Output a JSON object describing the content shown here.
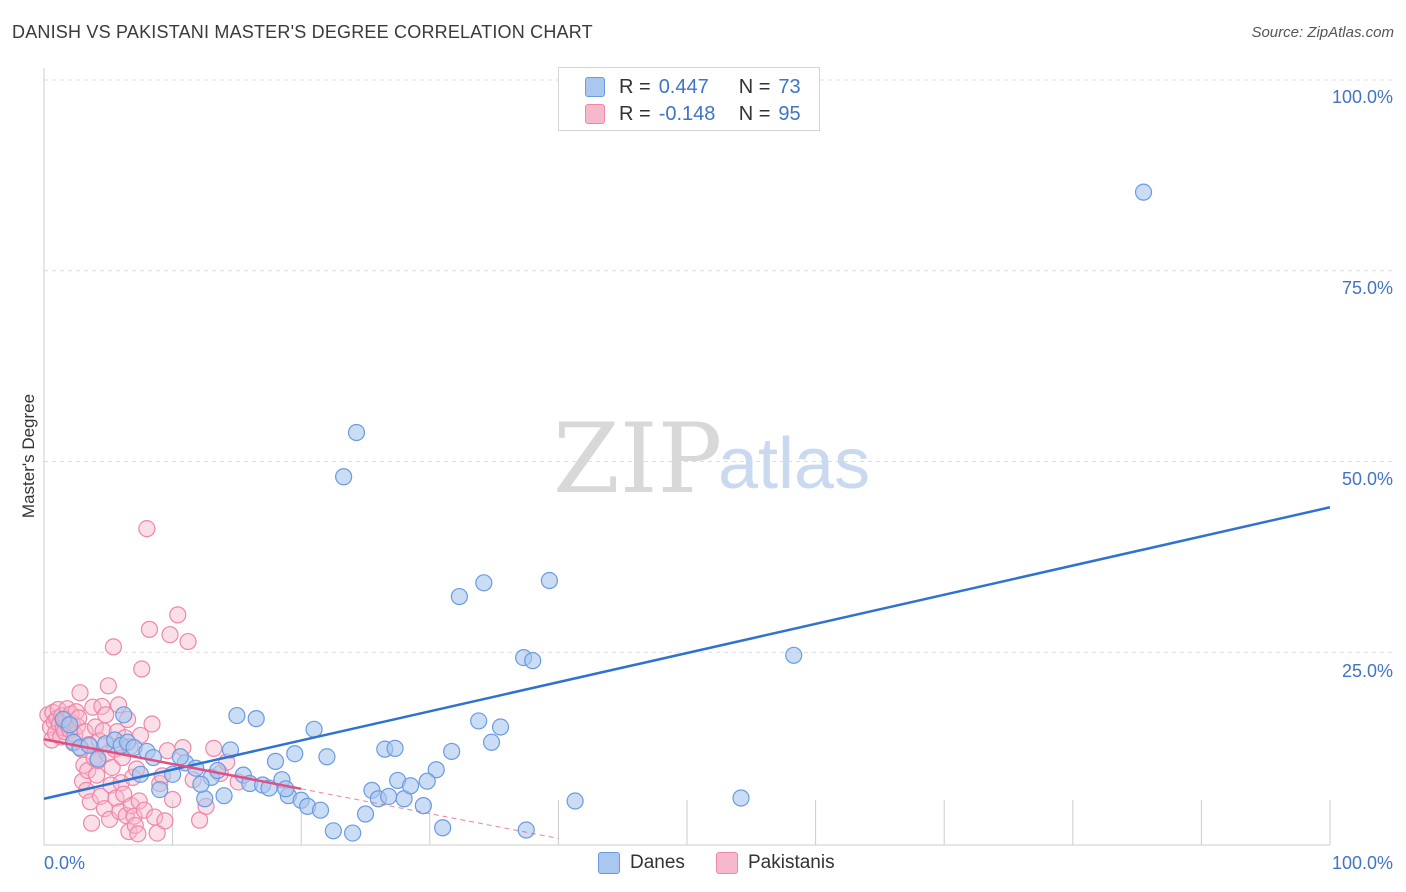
{
  "title": "DANISH VS PAKISTANI MASTER'S DEGREE CORRELATION CHART",
  "source": "Source: ZipAtlas.com",
  "watermark": {
    "zip": "ZIP",
    "atlas": "atlas"
  },
  "legend": {
    "rows": [
      {
        "r_label": "R =",
        "r_value": "0.447",
        "n_label": "N =",
        "n_value": "73"
      },
      {
        "r_label": "R =",
        "r_value": "-0.148",
        "n_label": "N =",
        "n_value": "95"
      }
    ]
  },
  "bottom_legend": {
    "danes": "Danes",
    "pakistanis": "Pakistanis"
  },
  "colors": {
    "danes_fill": "#a9c7ef",
    "danes_stroke": "#6a9be0",
    "danes_line": "#2f72d0",
    "pak_fill": "#f6b9cc",
    "pak_stroke": "#ee87a8",
    "pak_line": "#e24f82",
    "tick": "#3f74c6",
    "grid": "#dddddd"
  },
  "chart_data": {
    "type": "scatter",
    "title": "DANISH VS PAKISTANI MASTER'S DEGREE CORRELATION CHART",
    "xlabel": "",
    "ylabel": "Master's Degree",
    "xlim": [
      0,
      100
    ],
    "ylim": [
      0,
      100
    ],
    "x_tick_labels": [
      "0.0%",
      "100.0%"
    ],
    "y_tick_labels": [
      "25.0%",
      "50.0%",
      "75.0%",
      "100.0%"
    ],
    "y_tick_values": [
      25,
      50,
      75,
      100
    ],
    "grid": true,
    "series": [
      {
        "name": "Danes",
        "R": 0.447,
        "N": 73,
        "trend": {
          "x": [
            0,
            100
          ],
          "y": [
            5.8,
            44.0
          ]
        },
        "points": [
          [
            1.5,
            16.2
          ],
          [
            2,
            15.5
          ],
          [
            2.3,
            13.2
          ],
          [
            2.8,
            12.5
          ],
          [
            3.5,
            12.8
          ],
          [
            4.2,
            11
          ],
          [
            4.8,
            13
          ],
          [
            5.5,
            13.5
          ],
          [
            6,
            12.8
          ],
          [
            6.5,
            13.2
          ],
          [
            7,
            12.5
          ],
          [
            7.5,
            9
          ],
          [
            8,
            12
          ],
          [
            8.5,
            11.2
          ],
          [
            9,
            7
          ],
          [
            10,
            9
          ],
          [
            11,
            10.5
          ],
          [
            11.8,
            9.8
          ],
          [
            12.5,
            5.8
          ],
          [
            13,
            8.6
          ],
          [
            13.5,
            9.5
          ],
          [
            14,
            6.2
          ],
          [
            14.5,
            12.2
          ],
          [
            15,
            16.7
          ],
          [
            15.5,
            8.9
          ],
          [
            16,
            7.8
          ],
          [
            16.5,
            16.3
          ],
          [
            17,
            7.6
          ],
          [
            17.5,
            7.2
          ],
          [
            18,
            10.7
          ],
          [
            18.5,
            8.3
          ],
          [
            19,
            6.2
          ],
          [
            19.5,
            11.7
          ],
          [
            20,
            5.6
          ],
          [
            20.5,
            4.8
          ],
          [
            21,
            14.9
          ],
          [
            21.5,
            4.3
          ],
          [
            22,
            11.3
          ],
          [
            22.5,
            1.6
          ],
          [
            24,
            1.3
          ],
          [
            23.3,
            48
          ],
          [
            24.3,
            53.8
          ],
          [
            25,
            3.8
          ],
          [
            25.5,
            6.9
          ],
          [
            26,
            5.8
          ],
          [
            26.5,
            12.3
          ],
          [
            27.3,
            12.4
          ],
          [
            27.5,
            8.2
          ],
          [
            28,
            5.8
          ],
          [
            28.5,
            7.5
          ],
          [
            29.5,
            4.9
          ],
          [
            30.5,
            9.6
          ],
          [
            31,
            2
          ],
          [
            31.7,
            12
          ],
          [
            32.3,
            32.3
          ],
          [
            33.8,
            16
          ],
          [
            34.2,
            34.1
          ],
          [
            34.8,
            13.2
          ],
          [
            35.5,
            15.2
          ],
          [
            37.3,
            24.3
          ],
          [
            37.5,
            1.7
          ],
          [
            39.3,
            34.4
          ],
          [
            41.3,
            5.5
          ],
          [
            38,
            23.9
          ],
          [
            54.2,
            5.9
          ],
          [
            58.3,
            24.6
          ],
          [
            85.5,
            85.3
          ],
          [
            6.2,
            16.8
          ],
          [
            10.6,
            11.3
          ],
          [
            18.8,
            7.1
          ],
          [
            26.8,
            6.1
          ],
          [
            29.8,
            8.1
          ],
          [
            12.2,
            7.7
          ]
        ]
      },
      {
        "name": "Pakistanis",
        "R": -0.148,
        "N": 95,
        "trend": {
          "x": [
            0,
            20
          ],
          "y": [
            13.6,
            7.1
          ]
        },
        "trend_dashed": {
          "x": [
            20,
            40
          ],
          "y": [
            7.1,
            0.6
          ]
        },
        "points": [
          [
            0.3,
            16.8
          ],
          [
            0.5,
            15.2
          ],
          [
            0.6,
            13.5
          ],
          [
            0.7,
            17.1
          ],
          [
            0.8,
            15.9
          ],
          [
            0.9,
            14.4
          ],
          [
            1,
            16.3
          ],
          [
            1.1,
            17.5
          ],
          [
            1.2,
            15.6
          ],
          [
            1.3,
            13.9
          ],
          [
            1.4,
            16.7
          ],
          [
            1.5,
            15.1
          ],
          [
            1.6,
            14.6
          ],
          [
            1.7,
            16.1
          ],
          [
            1.8,
            17.6
          ],
          [
            1.9,
            15.4
          ],
          [
            2,
            14.8
          ],
          [
            2.1,
            16.9
          ],
          [
            2.2,
            15.7
          ],
          [
            2.3,
            13.1
          ],
          [
            2.4,
            14.2
          ],
          [
            2.5,
            17.2
          ],
          [
            2.6,
            15.3
          ],
          [
            2.7,
            16.4
          ],
          [
            2.8,
            19.7
          ],
          [
            2.9,
            12.3
          ],
          [
            3,
            8.1
          ],
          [
            3.1,
            10.2
          ],
          [
            3.2,
            14.6
          ],
          [
            3.3,
            6.9
          ],
          [
            3.4,
            9.5
          ],
          [
            3.5,
            12.9
          ],
          [
            3.6,
            5.4
          ],
          [
            3.7,
            2.6
          ],
          [
            3.8,
            17.8
          ],
          [
            3.9,
            11.1
          ],
          [
            4,
            15.2
          ],
          [
            4.1,
            8.9
          ],
          [
            4.2,
            10.8
          ],
          [
            4.3,
            13.4
          ],
          [
            4.4,
            6.1
          ],
          [
            4.5,
            17.9
          ],
          [
            4.6,
            14.7
          ],
          [
            4.7,
            4.5
          ],
          [
            4.8,
            16.8
          ],
          [
            4.9,
            11.7
          ],
          [
            5,
            20.6
          ],
          [
            5.1,
            3.1
          ],
          [
            5.2,
            7.6
          ],
          [
            5.3,
            9.9
          ],
          [
            5.4,
            25.7
          ],
          [
            5.5,
            12.3
          ],
          [
            5.6,
            5.9
          ],
          [
            5.7,
            14.6
          ],
          [
            5.8,
            18.1
          ],
          [
            5.9,
            4.1
          ],
          [
            6,
            7.9
          ],
          [
            6.1,
            11.2
          ],
          [
            6.2,
            6.4
          ],
          [
            6.3,
            13.8
          ],
          [
            6.4,
            3.6
          ],
          [
            6.5,
            16.2
          ],
          [
            6.6,
            1.5
          ],
          [
            6.7,
            12.6
          ],
          [
            6.8,
            4.9
          ],
          [
            6.9,
            8.6
          ],
          [
            7,
            3.5
          ],
          [
            7.1,
            2.3
          ],
          [
            7.2,
            9.7
          ],
          [
            7.3,
            1.2
          ],
          [
            7.4,
            5.5
          ],
          [
            7.5,
            14.1
          ],
          [
            7.6,
            22.8
          ],
          [
            7.8,
            4.3
          ],
          [
            8,
            41.2
          ],
          [
            8.2,
            28
          ],
          [
            8.4,
            15.6
          ],
          [
            8.6,
            3.4
          ],
          [
            8.8,
            1.3
          ],
          [
            9,
            7.8
          ],
          [
            9.2,
            8.8
          ],
          [
            9.4,
            2.9
          ],
          [
            9.6,
            12.1
          ],
          [
            9.8,
            27.3
          ],
          [
            10,
            5.7
          ],
          [
            10.4,
            29.9
          ],
          [
            10.8,
            12.5
          ],
          [
            11.2,
            26.4
          ],
          [
            11.6,
            8.3
          ],
          [
            12.1,
            3
          ],
          [
            12.6,
            4.8
          ],
          [
            13.2,
            12.4
          ],
          [
            13.7,
            9.1
          ],
          [
            14.2,
            10.6
          ],
          [
            15.1,
            8
          ]
        ]
      }
    ]
  }
}
